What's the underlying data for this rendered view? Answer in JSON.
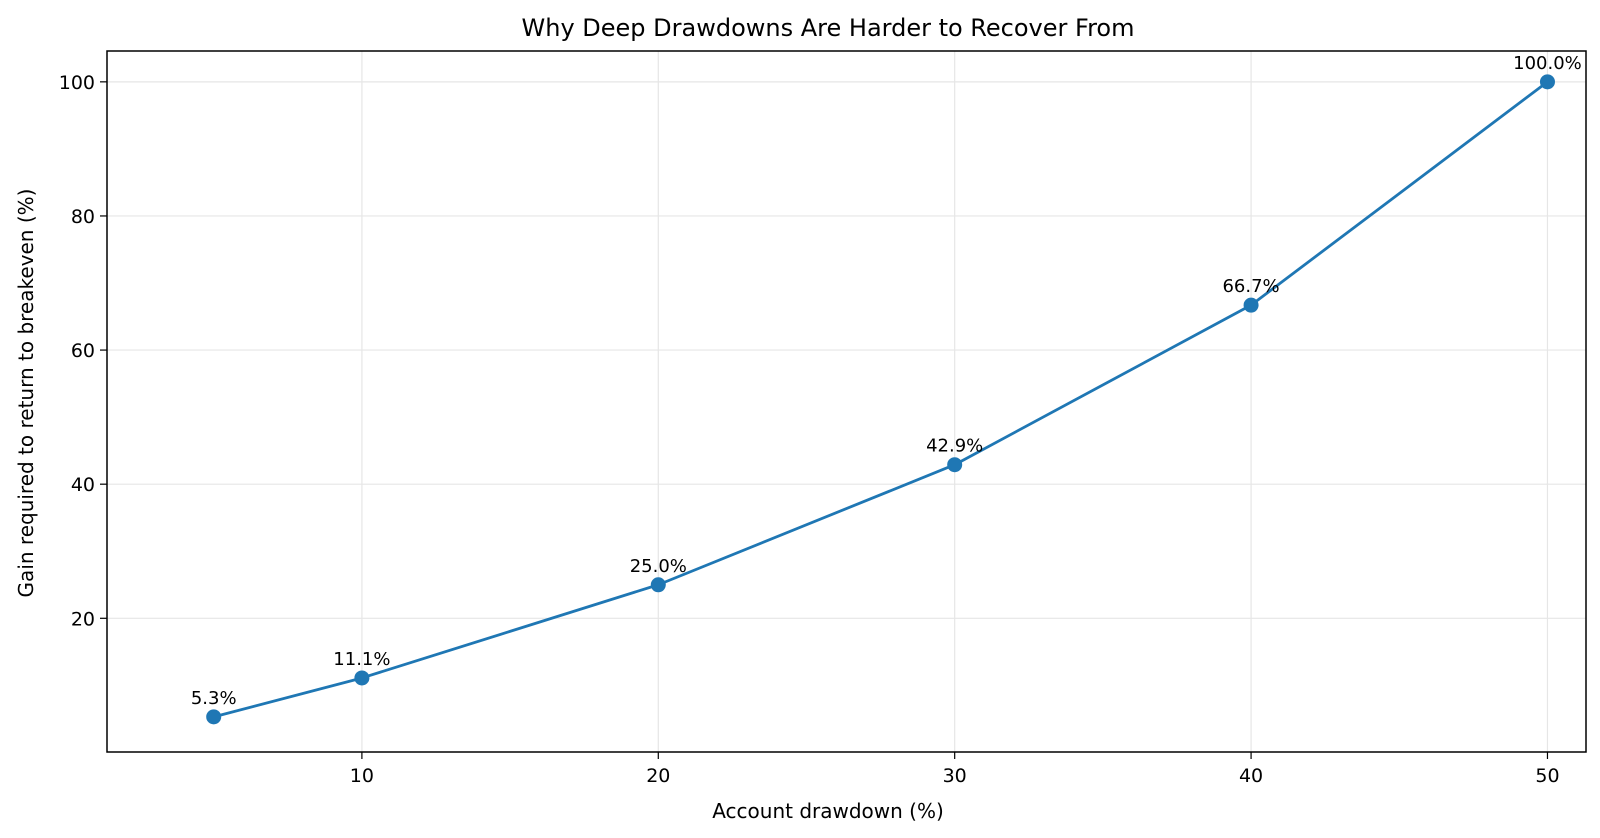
{
  "chart_data": {
    "type": "line",
    "title": "Why Deep Drawdowns Are Harder to Recover From",
    "xlabel": "Account drawdown (%)",
    "ylabel": "Gain required to return to breakeven (%)",
    "x": [
      5,
      10,
      20,
      30,
      40,
      50
    ],
    "series": [
      {
        "values": [
          5.3,
          11.1,
          25.0,
          42.9,
          66.7,
          100.0
        ],
        "data_labels": [
          "5.3%",
          "11.1%",
          "25.0%",
          "42.9%",
          "66.7%",
          "100.0%"
        ],
        "color": "#1f77b4",
        "marker": "circle"
      }
    ],
    "xlim": [
      1.4,
      51.3
    ],
    "ylim": [
      0.06,
      104.6
    ],
    "xticks": [
      10,
      20,
      30,
      40,
      50
    ],
    "yticks": [
      20,
      40,
      60,
      80,
      100
    ],
    "grid": true,
    "colors": {
      "line": "#1f77b4",
      "grid": "#e6e6e6",
      "axis": "#000000"
    }
  }
}
